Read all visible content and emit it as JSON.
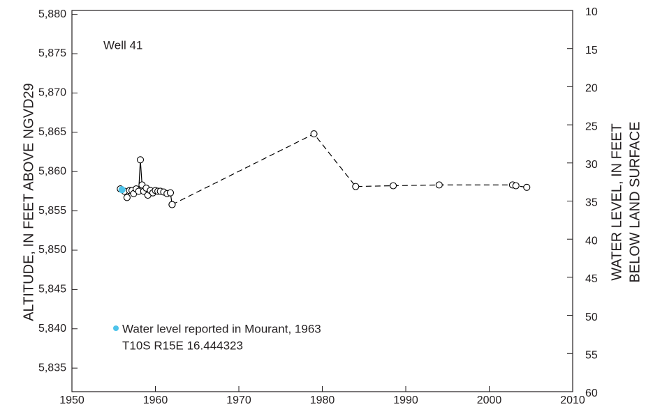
{
  "chart_data": {
    "type": "line",
    "annotation": "Well 41",
    "ylabel": "ALTITUDE, IN FEET ABOVE NGVD29",
    "y2label": [
      "WATER LEVEL, IN FEET",
      "BELOW LAND SURFACE"
    ],
    "note": "T10S R15E 16.444323",
    "xlim": [
      1950,
      2010
    ],
    "xticks": [
      1950,
      1960,
      1970,
      1980,
      1990,
      2000,
      2010
    ],
    "ylim": [
      5832,
      5880.5
    ],
    "yticks": [
      {
        "value": 5835,
        "label": "5,835"
      },
      {
        "value": 5840,
        "label": "5,840"
      },
      {
        "value": 5845,
        "label": "5,845"
      },
      {
        "value": 5850,
        "label": "5,850"
      },
      {
        "value": 5855,
        "label": "5,855"
      },
      {
        "value": 5860,
        "label": "5,860"
      },
      {
        "value": 5865,
        "label": "5,865"
      },
      {
        "value": 5870,
        "label": "5,870"
      },
      {
        "value": 5875,
        "label": "5,875"
      },
      {
        "value": 5880,
        "label": "5,880"
      }
    ],
    "y2lim": [
      60,
      10
    ],
    "y2ticks": [
      10,
      15,
      20,
      25,
      30,
      35,
      40,
      45,
      50,
      55,
      60
    ],
    "series": [
      {
        "line_style": "solid",
        "marker": "open",
        "color": "#000000",
        "x": [
          1955.8,
          1956.3,
          1956.6,
          1956.9,
          1957.2,
          1957.4,
          1957.7,
          1958.0,
          1958.2,
          1958.4,
          1958.6,
          1958.9,
          1959.1,
          1959.4,
          1959.7,
          1960.0,
          1960.3,
          1960.6,
          1961.0,
          1961.4,
          1961.8,
          1962.0
        ],
        "values": [
          5857.8,
          5857.5,
          5856.7,
          5857.6,
          5857.6,
          5857.2,
          5857.8,
          5857.5,
          5861.5,
          5858.3,
          5857.5,
          5857.9,
          5857.0,
          5857.6,
          5857.3,
          5857.6,
          5857.5,
          5857.5,
          5857.4,
          5857.2,
          5857.3,
          5855.8
        ]
      },
      {
        "line_style": "dashed",
        "marker": "open",
        "color": "#000000",
        "x": [
          1962.0,
          1979.0,
          1984.0,
          1988.5,
          1994.0,
          2002.8,
          2003.2,
          2004.5
        ],
        "values": [
          5855.8,
          5864.8,
          5858.1,
          5858.2,
          5858.3,
          5858.3,
          5858.2,
          5858.0
        ]
      },
      {
        "name": "Water level reported in Mourant, 1963",
        "line_style": "none",
        "marker": "filled",
        "color": "#4dc3ea",
        "x": [
          1956.0
        ],
        "values": [
          5857.7
        ]
      }
    ]
  }
}
